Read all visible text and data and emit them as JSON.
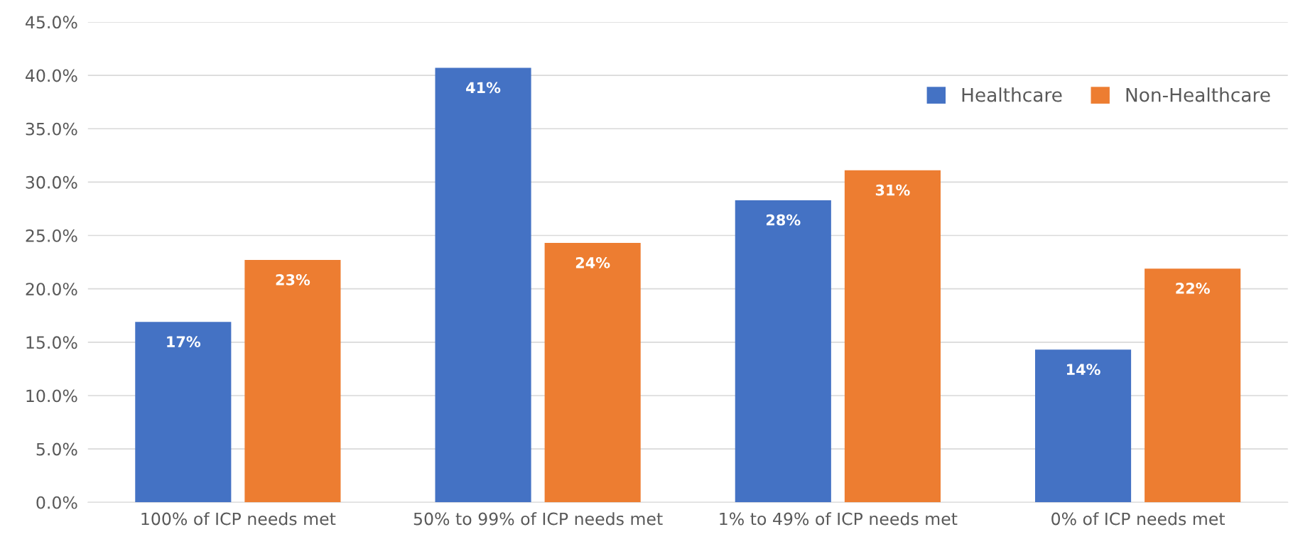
{
  "chart_data": {
    "type": "bar",
    "categories": [
      "100% of ICP needs met",
      "50% to 99% of ICP needs met",
      "1% to 49% of ICP needs met",
      "0% of ICP needs met"
    ],
    "series": [
      {
        "name": "Healthcare",
        "color": "#4472c4",
        "values": [
          16.9,
          40.7,
          28.3,
          14.3
        ],
        "value_labels": [
          "17%",
          "41%",
          "28%",
          "14%"
        ]
      },
      {
        "name": "Non-Healthcare",
        "color": "#ed7d31",
        "values": [
          22.7,
          24.3,
          31.1,
          21.9
        ],
        "value_labels": [
          "23%",
          "24%",
          "31%",
          "22%"
        ]
      }
    ],
    "ylim": [
      0,
      45
    ],
    "yticks": [
      {
        "value": 0,
        "label": "0.0%"
      },
      {
        "value": 5,
        "label": "5.0%"
      },
      {
        "value": 10,
        "label": "10.0%"
      },
      {
        "value": 15,
        "label": "15.0%"
      },
      {
        "value": 20,
        "label": "20.0%"
      },
      {
        "value": 25,
        "label": "25.0%"
      },
      {
        "value": 30,
        "label": "30.0%"
      },
      {
        "value": 35,
        "label": "35.0%"
      },
      {
        "value": 40,
        "label": "40.0%"
      },
      {
        "value": 45,
        "label": "45.0%"
      }
    ],
    "grid": "y",
    "legend": "top right"
  }
}
